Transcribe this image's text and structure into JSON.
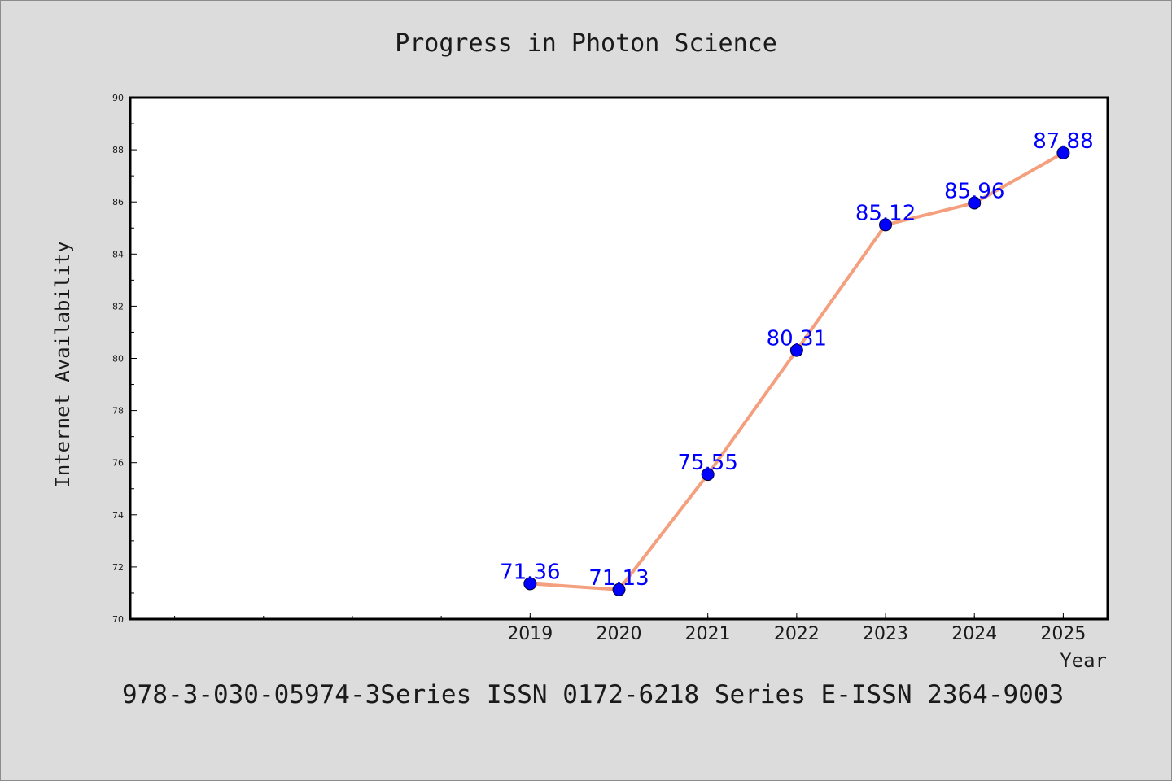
{
  "chart_data": {
    "type": "line",
    "title": "Progress in Photon Science",
    "xlabel": "Year",
    "ylabel": "Internet Availability",
    "x": [
      "2019",
      "2020",
      "2021",
      "2022",
      "2023",
      "2024",
      "2025"
    ],
    "series": [
      {
        "values": [
          71.36,
          71.13,
          75.55,
          80.31,
          85.12,
          85.96,
          87.88
        ]
      }
    ],
    "data_labels": [
      "71.36",
      "71.13",
      "75.55",
      "80.31",
      "85.12",
      "85.96",
      "87.88"
    ],
    "ylim": [
      70,
      90
    ],
    "yticks": [
      70,
      72,
      74,
      76,
      78,
      80,
      82,
      84,
      86,
      88,
      90
    ],
    "xlim": [
      2014.5,
      2025.5
    ],
    "grid": false,
    "legend": "none",
    "line_color": "#f4a07e",
    "marker_color": "#0000ff",
    "label_color": "#0000ff",
    "footnote": "978-3-030-05974-3Series ISSN 0172-6218 Series E-ISSN 2364-9003"
  }
}
